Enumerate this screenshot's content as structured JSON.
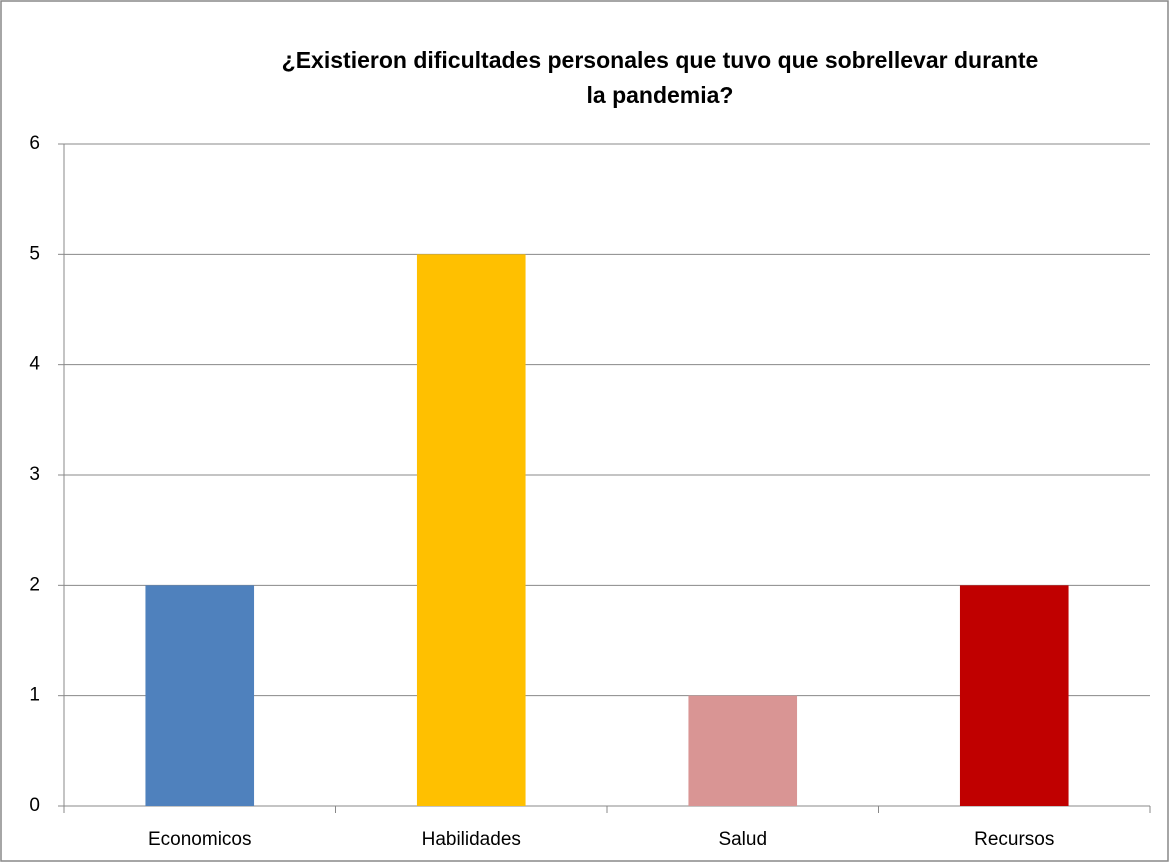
{
  "chart_data": {
    "type": "bar",
    "title": [
      "¿Existieron dificultades personales que tuvo que sobrellevar durante",
      "la pandemia?"
    ],
    "categories": [
      "Economicos",
      "Habilidades",
      "Salud",
      "Recursos"
    ],
    "values": [
      2,
      5,
      1,
      2
    ],
    "colors": [
      "#4f81bd",
      "#ffc000",
      "#d99594",
      "#c00000"
    ],
    "ylim": [
      0,
      6
    ],
    "yticks": [
      0,
      1,
      2,
      3,
      4,
      5,
      6
    ],
    "grid": true
  }
}
